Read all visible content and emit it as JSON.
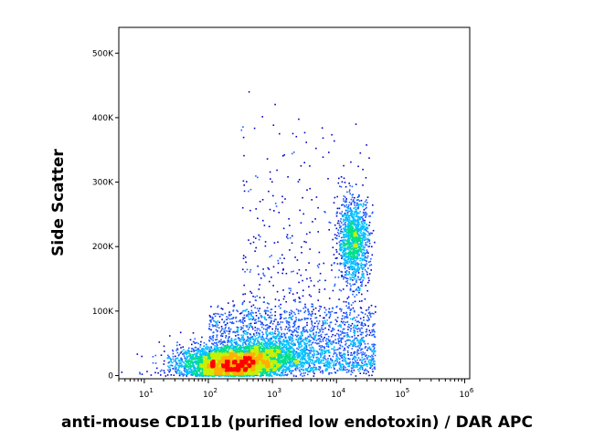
{
  "chart_data": {
    "type": "scatter",
    "subtype": "flow-cytometry-density-dot-plot",
    "xlabel": "anti-mouse CD11b (purified low endotoxin) / DAR APC",
    "ylabel": "Side Scatter",
    "x_scale": "log",
    "y_scale": "linear",
    "xlim": [
      4,
      1200000
    ],
    "ylim": [
      -5000,
      540000
    ],
    "grid": false,
    "x_ticks": [
      {
        "value": 10,
        "base": "10",
        "exp": "1"
      },
      {
        "value": 100,
        "base": "10",
        "exp": "2"
      },
      {
        "value": 1000,
        "base": "10",
        "exp": "3"
      },
      {
        "value": 10000,
        "base": "10",
        "exp": "4"
      },
      {
        "value": 100000,
        "base": "10",
        "exp": "5"
      },
      {
        "value": 1000000,
        "base": "10",
        "exp": "6"
      }
    ],
    "y_ticks": [
      {
        "value": 0,
        "label": "0"
      },
      {
        "value": 100000,
        "label": "100K"
      },
      {
        "value": 200000,
        "label": "200K"
      },
      {
        "value": 300000,
        "label": "300K"
      },
      {
        "value": 400000,
        "label": "400K"
      },
      {
        "value": 500000,
        "label": "500K"
      }
    ],
    "density_colors": [
      "#0000c8",
      "#1e5cff",
      "#00bfff",
      "#00e08a",
      "#c8f000",
      "#ffb000",
      "#ff0000"
    ],
    "populations": [
      {
        "name": "CD11b-negative cluster",
        "x_center": 280,
        "y_center": 18000,
        "peak_density": "high"
      },
      {
        "name": "CD11b-positive cluster",
        "x_center": 18000,
        "y_center": 210000,
        "peak_density": "low"
      }
    ]
  }
}
